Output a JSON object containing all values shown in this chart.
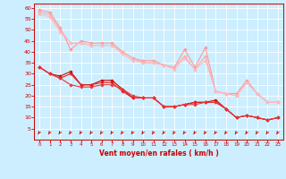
{
  "x": [
    0,
    1,
    2,
    3,
    4,
    5,
    6,
    7,
    8,
    9,
    10,
    11,
    12,
    13,
    14,
    15,
    16,
    17,
    18,
    19,
    20,
    21,
    22,
    23
  ],
  "series": [
    {
      "y": [
        33,
        30,
        29,
        31,
        25,
        25,
        27,
        27,
        23,
        19,
        19,
        19,
        15,
        15,
        16,
        17,
        17,
        18,
        14,
        10,
        11,
        10,
        9,
        10
      ],
      "color": "#cc0000",
      "marker": "D",
      "markersize": 1.8,
      "lw": 0.8
    },
    {
      "y": [
        33,
        30,
        28,
        30,
        25,
        25,
        26,
        26,
        22,
        19,
        19,
        19,
        15,
        15,
        16,
        17,
        17,
        17,
        14,
        10,
        11,
        10,
        9,
        10
      ],
      "color": "#dd2222",
      "marker": "D",
      "markersize": 1.8,
      "lw": 0.8
    },
    {
      "y": [
        33,
        30,
        28,
        25,
        24,
        24,
        25,
        25,
        23,
        20,
        19,
        19,
        15,
        15,
        16,
        16,
        17,
        17,
        14,
        10,
        11,
        10,
        9,
        10
      ],
      "color": "#ee3333",
      "marker": "D",
      "markersize": 1.8,
      "lw": 0.8
    },
    {
      "y": [
        59,
        58,
        51,
        41,
        45,
        44,
        44,
        44,
        40,
        37,
        36,
        36,
        34,
        33,
        41,
        33,
        42,
        22,
        21,
        21,
        27,
        21,
        17,
        17
      ],
      "color": "#ff9999",
      "marker": "D",
      "markersize": 1.8,
      "lw": 0.8
    },
    {
      "y": [
        58,
        57,
        50,
        44,
        44,
        43,
        43,
        43,
        40,
        37,
        35,
        35,
        34,
        33,
        38,
        32,
        38,
        22,
        21,
        20,
        26,
        21,
        17,
        17
      ],
      "color": "#ffaaaa",
      "marker": "D",
      "markersize": 1.8,
      "lw": 0.8
    },
    {
      "y": [
        57,
        56,
        49,
        44,
        44,
        43,
        43,
        43,
        39,
        36,
        35,
        35,
        34,
        32,
        37,
        32,
        36,
        22,
        21,
        20,
        26,
        21,
        17,
        17
      ],
      "color": "#ffbbbb",
      "marker": "D",
      "markersize": 1.8,
      "lw": 0.8
    }
  ],
  "wind_arrows_x": [
    0,
    1,
    2,
    3,
    4,
    5,
    6,
    7,
    8,
    9,
    10,
    11,
    12,
    13,
    14,
    15,
    16,
    17,
    18,
    19,
    20,
    21,
    22,
    23
  ],
  "xlabel": "Vent moyen/en rafales ( km/h )",
  "xlim": [
    -0.5,
    23.5
  ],
  "ylim": [
    0,
    62
  ],
  "yticks": [
    5,
    10,
    15,
    20,
    25,
    30,
    35,
    40,
    45,
    50,
    55,
    60
  ],
  "xticks": [
    0,
    1,
    2,
    3,
    4,
    5,
    6,
    7,
    8,
    9,
    10,
    11,
    12,
    13,
    14,
    15,
    16,
    17,
    18,
    19,
    20,
    21,
    22,
    23
  ],
  "bg_color": "#cceeff",
  "grid_color": "#ffffff",
  "tick_color": "#cc0000",
  "label_color": "#cc0000",
  "axis_color": "#cc0000",
  "arrow_color": "#cc0000"
}
